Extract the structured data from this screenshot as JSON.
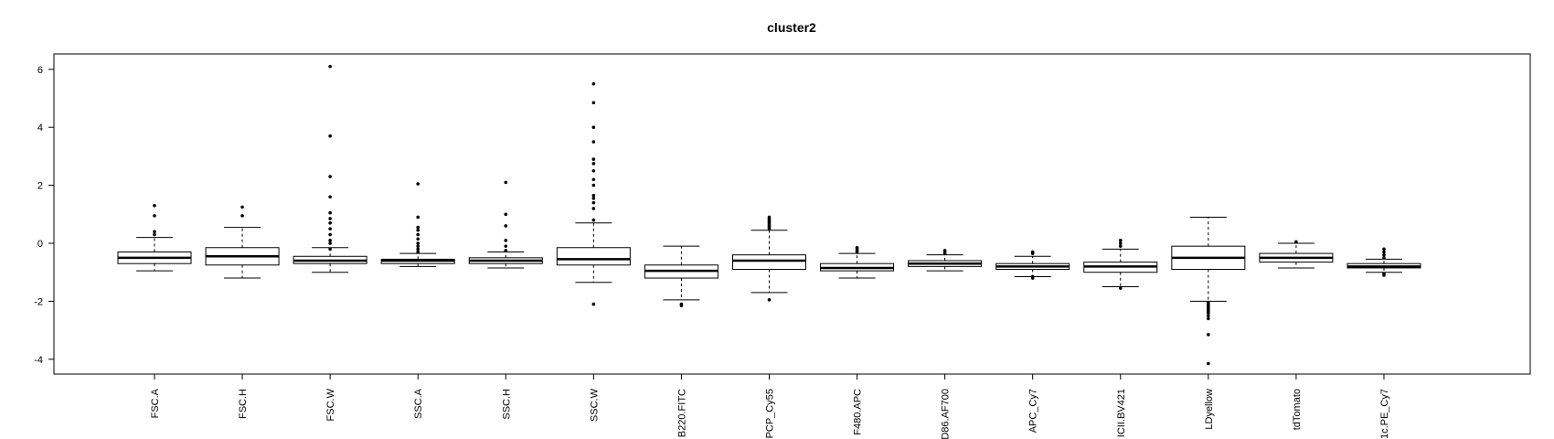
{
  "chart_data": {
    "type": "boxplot",
    "title": "cluster2",
    "xlabel": "",
    "ylabel": "",
    "ylim": [
      -4.5,
      6.3
    ],
    "yticks": [
      -4,
      -2,
      0,
      2,
      4,
      6
    ],
    "grid": false,
    "categories": [
      "FSC.A",
      "FSC.H",
      "FSC.W",
      "SSC.A",
      "SSC.H",
      "SSC.W",
      "B220.FITC",
      "PCP_Cy55",
      "F480.APC",
      "D86.AF700",
      "APC_Cy7",
      "ICII.BV421",
      "LDyellow",
      "tdTomato",
      "1c.PE_Cy7"
    ],
    "boxes": [
      {
        "lw": -0.95,
        "q1": -0.7,
        "med": -0.5,
        "q3": -0.3,
        "uw": 0.2,
        "out": [
          0.3,
          0.4,
          0.95,
          1.3
        ]
      },
      {
        "lw": -1.2,
        "q1": -0.75,
        "med": -0.45,
        "q3": -0.15,
        "uw": 0.55,
        "out": [
          0.95,
          1.25
        ]
      },
      {
        "lw": -1.0,
        "q1": -0.7,
        "med": -0.6,
        "q3": -0.45,
        "uw": -0.15,
        "out": [
          -0.2,
          0.0,
          0.1,
          0.3,
          0.5,
          0.7,
          0.85,
          1.05,
          1.6,
          2.3,
          3.7,
          6.1
        ]
      },
      {
        "lw": -0.8,
        "q1": -0.7,
        "med": -0.6,
        "q3": -0.55,
        "uw": -0.35,
        "out": [
          -0.3,
          -0.2,
          -0.1,
          0.0,
          0.15,
          0.3,
          0.45,
          0.55,
          0.9,
          2.05
        ]
      },
      {
        "lw": -0.85,
        "q1": -0.7,
        "med": -0.6,
        "q3": -0.5,
        "uw": -0.3,
        "out": [
          -0.25,
          -0.1,
          0.1,
          0.6,
          1.0,
          2.1
        ]
      },
      {
        "lw": -1.35,
        "q1": -0.75,
        "med": -0.55,
        "q3": -0.15,
        "uw": 0.7,
        "out": [
          -2.1,
          0.8,
          1.2,
          1.4,
          1.55,
          1.65,
          2.0,
          2.2,
          2.5,
          2.75,
          2.9,
          3.5,
          4.0,
          4.85,
          5.5
        ]
      },
      {
        "lw": -1.95,
        "q1": -1.2,
        "med": -0.95,
        "q3": -0.75,
        "uw": -0.1,
        "out": [
          -2.1,
          -2.15
        ]
      },
      {
        "lw": -1.7,
        "q1": -0.9,
        "med": -0.6,
        "q3": -0.4,
        "uw": 0.45,
        "out": [
          -1.95,
          0.5,
          0.55,
          0.6,
          0.65,
          0.7,
          0.75,
          0.8,
          0.85,
          0.9
        ]
      },
      {
        "lw": -1.2,
        "q1": -0.95,
        "med": -0.85,
        "q3": -0.7,
        "uw": -0.35,
        "out": [
          -0.3,
          -0.25,
          -0.2,
          -0.15
        ]
      },
      {
        "lw": -0.95,
        "q1": -0.8,
        "med": -0.7,
        "q3": -0.6,
        "uw": -0.4,
        "out": [
          -0.35,
          -0.3,
          -0.25
        ]
      },
      {
        "lw": -1.15,
        "q1": -0.9,
        "med": -0.8,
        "q3": -0.7,
        "uw": -0.45,
        "out": [
          -1.2,
          -1.15,
          -0.35,
          -0.3
        ]
      },
      {
        "lw": -1.5,
        "q1": -1.0,
        "med": -0.8,
        "q3": -0.65,
        "uw": -0.2,
        "out": [
          -1.55,
          -0.1,
          0.0,
          0.1
        ]
      },
      {
        "lw": -2.0,
        "q1": -0.9,
        "med": -0.5,
        "q3": -0.1,
        "uw": 0.9,
        "out": [
          -2.05,
          -2.1,
          -2.15,
          -2.2,
          -2.25,
          -2.3,
          -2.35,
          -2.4,
          -2.5,
          -2.6,
          -3.15,
          -4.15
        ]
      },
      {
        "lw": -0.85,
        "q1": -0.65,
        "med": -0.5,
        "q3": -0.35,
        "uw": 0.0,
        "out": [
          0.05
        ]
      },
      {
        "lw": -1.0,
        "q1": -0.85,
        "med": -0.8,
        "q3": -0.7,
        "uw": -0.55,
        "out": [
          -1.1,
          -1.05,
          -0.5,
          -0.4,
          -0.3,
          -0.2
        ]
      }
    ]
  }
}
